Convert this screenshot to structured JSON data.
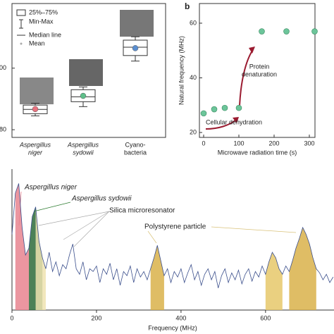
{
  "chart_data": [
    {
      "type": "box",
      "legend": [
        "25%–75%",
        "Min-Max",
        "Median line",
        "Mean"
      ],
      "categories": [
        [
          "Aspergillus",
          "niger"
        ],
        [
          "Aspergillus",
          "sydowii"
        ],
        [
          "Cyano-",
          "bacteria"
        ]
      ],
      "colors": [
        "#e8727f",
        "#5fbf8a",
        "#5b8fd0"
      ],
      "series": {
        "min": [
          84.5,
          87.5,
          102.3
        ],
        "q1": [
          85.2,
          89.1,
          104.1
        ],
        "median": [
          86.6,
          90.7,
          106.8
        ],
        "q3": [
          88.0,
          93.0,
          109.1
        ],
        "max": [
          88.6,
          93.9,
          110.2
        ],
        "mean": [
          86.7,
          91.0,
          106.5
        ]
      },
      "ylim": [
        77.5,
        121
      ],
      "yticks": [
        80,
        100
      ]
    },
    {
      "type": "scatter",
      "label": "b",
      "x": [
        0,
        30,
        60,
        100,
        165,
        235,
        315
      ],
      "values": [
        27,
        28.5,
        29,
        29,
        57,
        57,
        57
      ],
      "color": "#6cc59a",
      "xlim": [
        -12,
        316
      ],
      "ylim": [
        18.2,
        67.2
      ],
      "xticks": [
        0,
        100,
        200,
        300
      ],
      "yticks": [
        20,
        40,
        60
      ],
      "xlabel": "Microwave radiation time (s)",
      "ylabel": "Natural frequency (MHz)",
      "annotations": [
        [
          "Protein",
          "denaturation"
        ],
        [
          "Cellular dehydration"
        ]
      ]
    },
    {
      "type": "line",
      "x": [
        0,
        8,
        16,
        24,
        32,
        40,
        48,
        56,
        64,
        72,
        80,
        88,
        96,
        104,
        112,
        120,
        128,
        136,
        144,
        152,
        160,
        168,
        176,
        184,
        192,
        200,
        208,
        216,
        224,
        232,
        240,
        248,
        256,
        264,
        272,
        280,
        288,
        296,
        304,
        312,
        320,
        328,
        336,
        344,
        352,
        360,
        368,
        376,
        384,
        392,
        400,
        408,
        416,
        424,
        432,
        440,
        448,
        456,
        464,
        472,
        480,
        488,
        496,
        504,
        512,
        520,
        528,
        536,
        544,
        552,
        560,
        568,
        576,
        584,
        592,
        600,
        608,
        616,
        624,
        632,
        640,
        648,
        656,
        664,
        672,
        680,
        688,
        696,
        704,
        712,
        720,
        728,
        736,
        744,
        752,
        760
      ],
      "values": [
        0.55,
        0.85,
        0.92,
        0.6,
        0.4,
        0.45,
        0.68,
        0.75,
        0.5,
        0.38,
        0.3,
        0.42,
        0.28,
        0.35,
        0.25,
        0.33,
        0.3,
        0.4,
        0.48,
        0.3,
        0.26,
        0.35,
        0.22,
        0.3,
        0.28,
        0.32,
        0.2,
        0.3,
        0.26,
        0.34,
        0.22,
        0.3,
        0.18,
        0.28,
        0.25,
        0.32,
        0.2,
        0.3,
        0.24,
        0.28,
        0.22,
        0.3,
        0.38,
        0.47,
        0.36,
        0.25,
        0.3,
        0.2,
        0.28,
        0.24,
        0.3,
        0.2,
        0.27,
        0.33,
        0.22,
        0.28,
        0.18,
        0.26,
        0.3,
        0.22,
        0.28,
        0.16,
        0.25,
        0.3,
        0.2,
        0.27,
        0.22,
        0.29,
        0.19,
        0.26,
        0.3,
        0.21,
        0.28,
        0.24,
        0.32,
        0.26,
        0.35,
        0.42,
        0.38,
        0.3,
        0.26,
        0.32,
        0.28,
        0.36,
        0.45,
        0.52,
        0.6,
        0.55,
        0.48,
        0.38,
        0.3,
        0.27,
        0.22,
        0.26,
        0.2,
        0.24
      ],
      "color": "#3b4f8c",
      "xlim": [
        0,
        762
      ],
      "ylim": [
        0,
        1.05
      ],
      "xticks": [
        0,
        200,
        400,
        600
      ],
      "xlabel": "Frequency (MHz)",
      "annotations": [
        {
          "text": "Aspergillus niger",
          "color": "#e06070"
        },
        {
          "text": "Aspergillus sydowii",
          "color": "#2e7d32"
        },
        {
          "text": "Silica microresonator",
          "color": "#999999"
        },
        {
          "text": "Polystyrene particle",
          "color": "#c9a227"
        }
      ],
      "highlights": [
        {
          "range": [
            8,
            40
          ],
          "color": "#e8848f"
        },
        {
          "range": [
            40,
            72
          ],
          "color": "#2d6b3a"
        },
        {
          "range": [
            56,
            80
          ],
          "color": "#efe3b0"
        },
        {
          "range": [
            328,
            360
          ],
          "color": "#d9b24a"
        },
        {
          "range": [
            600,
            640
          ],
          "color": "#e6c86a"
        },
        {
          "range": [
            656,
            720
          ],
          "color": "#d9b24a"
        }
      ]
    }
  ]
}
